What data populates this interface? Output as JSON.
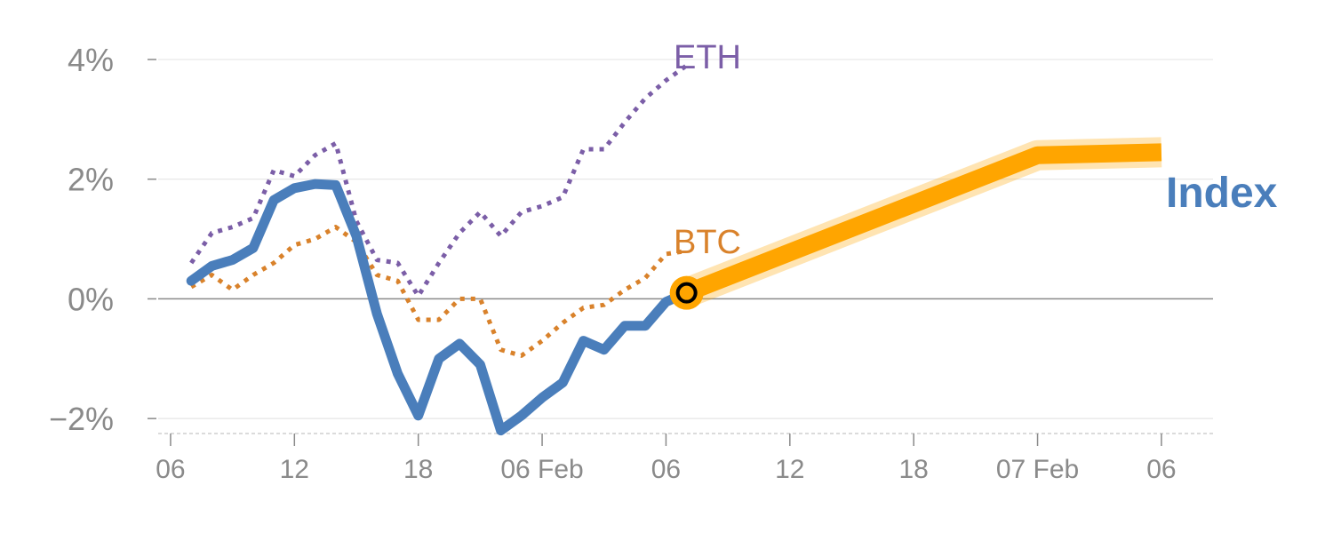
{
  "chart_data": {
    "type": "line",
    "yticks": [
      {
        "value": 4,
        "label": "4%"
      },
      {
        "value": 2,
        "label": "2%"
      },
      {
        "value": 0,
        "label": "0%"
      },
      {
        "value": -2,
        "label": "−2%"
      }
    ],
    "ylim": [
      -2.25,
      4.4
    ],
    "xticks": [
      {
        "t": 0,
        "label": "06"
      },
      {
        "t": 6,
        "label": "12"
      },
      {
        "t": 12,
        "label": "18"
      },
      {
        "t": 18,
        "label": "06 Feb"
      },
      {
        "t": 24,
        "label": "06"
      },
      {
        "t": 30,
        "label": "12"
      },
      {
        "t": 36,
        "label": "18"
      },
      {
        "t": 42,
        "label": "07 Feb"
      },
      {
        "t": 48,
        "label": "06"
      }
    ],
    "xlim": [
      -0.6,
      50.5
    ],
    "series": [
      {
        "name": "ETH",
        "color": "#7b5ea7",
        "style": "dotted",
        "x": [
          1,
          2,
          3,
          4,
          5,
          6,
          7,
          8,
          9,
          10,
          11,
          12,
          13,
          14,
          15,
          16,
          17,
          18,
          19,
          20,
          21,
          22,
          23,
          24,
          25
        ],
        "values": [
          0.6,
          1.1,
          1.2,
          1.35,
          2.15,
          2.05,
          2.4,
          2.6,
          1.3,
          0.65,
          0.6,
          0.05,
          0.6,
          1.1,
          1.45,
          1.05,
          1.45,
          1.55,
          1.7,
          2.5,
          2.5,
          2.95,
          3.35,
          3.65,
          3.9
        ]
      },
      {
        "name": "BTC",
        "color": "#d9822b",
        "style": "dotted",
        "x": [
          1,
          2,
          3,
          4,
          5,
          6,
          7,
          8,
          9,
          10,
          11,
          12,
          13,
          14,
          15,
          16,
          17,
          18,
          19,
          20,
          21,
          22,
          23,
          24,
          25
        ],
        "values": [
          0.2,
          0.4,
          0.15,
          0.4,
          0.6,
          0.9,
          1.0,
          1.2,
          0.95,
          0.4,
          0.3,
          -0.35,
          -0.35,
          0.0,
          0.0,
          -0.85,
          -0.95,
          -0.7,
          -0.4,
          -0.15,
          -0.1,
          0.15,
          0.35,
          0.75,
          0.8
        ]
      },
      {
        "name": "Index",
        "color": "#4a7ebb",
        "style": "solid",
        "x": [
          1,
          2,
          3,
          4,
          5,
          6,
          7,
          8,
          9,
          10,
          11,
          12,
          13,
          14,
          15,
          16,
          17,
          18,
          19,
          20,
          21,
          22,
          23,
          24,
          25
        ],
        "values": [
          0.3,
          0.55,
          0.65,
          0.85,
          1.65,
          1.85,
          1.92,
          1.9,
          1.05,
          -0.25,
          -1.25,
          -1.95,
          -1.0,
          -0.75,
          -1.1,
          -2.2,
          -1.95,
          -1.65,
          -1.4,
          -0.7,
          -0.85,
          -0.45,
          -0.45,
          -0.05,
          0.1
        ]
      }
    ],
    "forecast": {
      "color": "#ffa500",
      "x": [
        25,
        42,
        48
      ],
      "values": [
        0.1,
        2.4,
        2.45
      ]
    },
    "current_point": {
      "x": 25,
      "value": 0.1
    },
    "labels": {
      "eth": "ETH",
      "btc": "BTC",
      "index": "Index"
    },
    "colors": {
      "axis": "#8a8a8a",
      "grid": "#e6e6e6",
      "zero_line": "#8a8a8a"
    }
  }
}
